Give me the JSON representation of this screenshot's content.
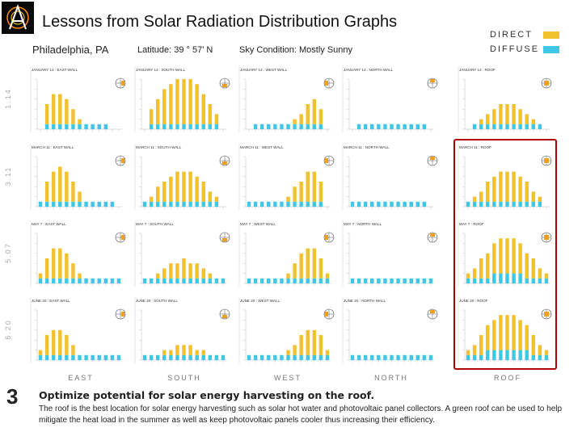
{
  "header": {
    "title": "Lessons from Solar Radiation Distribution Graphs",
    "city": "Philadelphia, PA",
    "latitude": "Latitude: 39 ° 57' N",
    "sky": "Sky Condition: Mostly Sunny"
  },
  "legend": {
    "items": [
      {
        "label": "DIRECT",
        "color": "#F2C12E"
      },
      {
        "label": "DIFFUSE",
        "color": "#3FC8E6"
      }
    ]
  },
  "footer": {
    "slide_number": "3",
    "heading": "Optimize potential for solar energy harvesting on the roof.",
    "body": "The roof is the best location for solar energy harvesting such as solar hot water and photovoltaic panel collectors.  A green roof can be used to help mitigate the heat load in the summer as well as keep photovoltaic panels cooler thus increasing their efficiency."
  },
  "chart_data": {
    "type": "bar",
    "columns": [
      "EAST",
      "SOUTH",
      "WEST",
      "NORTH",
      "ROOF"
    ],
    "rows": [
      "1.14",
      "3.11",
      "5.07",
      "6.20"
    ],
    "hours": 13,
    "ylim": [
      0,
      10
    ],
    "panels": [
      {
        "label": "JANUARY 14 : EAST WALL",
        "direct": [
          0,
          4,
          6,
          6,
          5,
          3,
          1,
          0,
          0,
          0,
          0,
          0,
          0
        ],
        "diffuse": [
          0,
          1,
          1,
          1,
          1,
          1,
          1,
          1,
          1,
          1,
          1,
          0,
          0
        ]
      },
      {
        "label": "JANUARY 14 : SOUTH WALL",
        "direct": [
          0,
          3,
          5,
          7,
          8,
          9,
          9,
          9,
          8,
          6,
          4,
          2,
          0
        ],
        "diffuse": [
          0,
          1,
          1,
          1,
          1,
          1,
          1,
          1,
          1,
          1,
          1,
          1,
          0
        ]
      },
      {
        "label": "JANUARY 14 : WEST WALL",
        "direct": [
          0,
          0,
          0,
          0,
          0,
          0,
          0,
          1,
          2,
          4,
          5,
          3,
          0
        ],
        "diffuse": [
          0,
          1,
          1,
          1,
          1,
          1,
          1,
          1,
          1,
          1,
          1,
          1,
          0
        ]
      },
      {
        "label": "JANUARY 14 : NORTH WALL",
        "direct": [
          0,
          0,
          0,
          0,
          0,
          0,
          0,
          0,
          0,
          0,
          0,
          0,
          0
        ],
        "diffuse": [
          0,
          1,
          1,
          1,
          1,
          1,
          1,
          1,
          1,
          1,
          1,
          1,
          0
        ]
      },
      {
        "label": "JANUARY 14 : ROOF",
        "direct": [
          0,
          0,
          1,
          2,
          3,
          4,
          4,
          4,
          3,
          2,
          1,
          0,
          0
        ],
        "diffuse": [
          0,
          1,
          1,
          1,
          1,
          1,
          1,
          1,
          1,
          1,
          1,
          1,
          0
        ]
      },
      {
        "label": "MARCH 11 : EAST WALL",
        "direct": [
          0,
          4,
          6,
          7,
          6,
          4,
          2,
          0,
          0,
          0,
          0,
          0,
          0
        ],
        "diffuse": [
          1,
          1,
          1,
          1,
          1,
          1,
          1,
          1,
          1,
          1,
          1,
          1,
          0
        ]
      },
      {
        "label": "MARCH 11 : SOUTH WALL",
        "direct": [
          0,
          1,
          3,
          4,
          5,
          6,
          6,
          6,
          5,
          4,
          2,
          1,
          0
        ],
        "diffuse": [
          1,
          1,
          1,
          1,
          1,
          1,
          1,
          1,
          1,
          1,
          1,
          1,
          0
        ]
      },
      {
        "label": "MARCH 11 : WEST WALL",
        "direct": [
          0,
          0,
          0,
          0,
          0,
          0,
          1,
          3,
          4,
          6,
          6,
          4,
          0
        ],
        "diffuse": [
          1,
          1,
          1,
          1,
          1,
          1,
          1,
          1,
          1,
          1,
          1,
          1,
          0
        ]
      },
      {
        "label": "MARCH 11 : NORTH WALL",
        "direct": [
          0,
          0,
          0,
          0,
          0,
          0,
          0,
          0,
          0,
          0,
          0,
          0,
          0
        ],
        "diffuse": [
          1,
          1,
          1,
          1,
          1,
          1,
          1,
          1,
          1,
          1,
          1,
          1,
          0
        ]
      },
      {
        "label": "MARCH 11 : ROOF",
        "direct": [
          0,
          1,
          2,
          4,
          5,
          6,
          6,
          6,
          5,
          4,
          2,
          1,
          0
        ],
        "diffuse": [
          1,
          1,
          1,
          1,
          1,
          1,
          1,
          1,
          1,
          1,
          1,
          1,
          0
        ]
      },
      {
        "label": "MAY 7 : EAST WALL",
        "direct": [
          1,
          4,
          6,
          6,
          5,
          3,
          1,
          0,
          0,
          0,
          0,
          0,
          0
        ],
        "diffuse": [
          1,
          1,
          1,
          1,
          1,
          1,
          1,
          1,
          1,
          1,
          1,
          1,
          1
        ]
      },
      {
        "label": "MAY 7 : SOUTH WALL",
        "direct": [
          0,
          0,
          1,
          2,
          3,
          3,
          4,
          3,
          3,
          2,
          1,
          0,
          0
        ],
        "diffuse": [
          1,
          1,
          1,
          1,
          1,
          1,
          1,
          1,
          1,
          1,
          1,
          1,
          1
        ]
      },
      {
        "label": "MAY 7 : WEST WALL",
        "direct": [
          0,
          0,
          0,
          0,
          0,
          0,
          1,
          3,
          5,
          6,
          6,
          4,
          1
        ],
        "diffuse": [
          1,
          1,
          1,
          1,
          1,
          1,
          1,
          1,
          1,
          1,
          1,
          1,
          1
        ]
      },
      {
        "label": "MAY 7 : NORTH WALL",
        "direct": [
          0,
          0,
          0,
          0,
          0,
          0,
          0,
          0,
          0,
          0,
          0,
          0,
          0
        ],
        "diffuse": [
          1,
          1,
          1,
          1,
          1,
          1,
          1,
          1,
          1,
          1,
          1,
          1,
          1
        ]
      },
      {
        "label": "MAY 7 : ROOF",
        "direct": [
          1,
          2,
          4,
          5,
          6,
          7,
          7,
          7,
          6,
          5,
          4,
          2,
          1
        ],
        "diffuse": [
          1,
          1,
          1,
          1,
          2,
          2,
          2,
          2,
          2,
          1,
          1,
          1,
          1
        ]
      },
      {
        "label": "JUNE 20 : EAST WALL",
        "direct": [
          1,
          4,
          5,
          5,
          4,
          2,
          0,
          0,
          0,
          0,
          0,
          0,
          0
        ],
        "diffuse": [
          1,
          1,
          1,
          1,
          1,
          1,
          1,
          1,
          1,
          1,
          1,
          1,
          1
        ]
      },
      {
        "label": "JUNE 20 : SOUTH WALL",
        "direct": [
          0,
          0,
          0,
          1,
          1,
          2,
          2,
          2,
          1,
          1,
          0,
          0,
          0
        ],
        "diffuse": [
          1,
          1,
          1,
          1,
          1,
          1,
          1,
          1,
          1,
          1,
          1,
          1,
          1
        ]
      },
      {
        "label": "JUNE 20 : WEST WALL",
        "direct": [
          0,
          0,
          0,
          0,
          0,
          0,
          1,
          2,
          4,
          5,
          5,
          4,
          1
        ],
        "diffuse": [
          1,
          1,
          1,
          1,
          1,
          1,
          1,
          1,
          1,
          1,
          1,
          1,
          1
        ]
      },
      {
        "label": "JUNE 20 : NORTH WALL",
        "direct": [
          0,
          0,
          0,
          0,
          0,
          0,
          0,
          0,
          0,
          0,
          0,
          0,
          0
        ],
        "diffuse": [
          1,
          1,
          1,
          1,
          1,
          1,
          1,
          1,
          1,
          1,
          1,
          1,
          1
        ]
      },
      {
        "label": "JUNE 20 : ROOF",
        "direct": [
          1,
          2,
          4,
          5,
          6,
          7,
          7,
          7,
          6,
          5,
          4,
          2,
          1
        ],
        "diffuse": [
          1,
          1,
          1,
          2,
          2,
          2,
          2,
          2,
          2,
          2,
          1,
          1,
          1
        ]
      }
    ]
  }
}
